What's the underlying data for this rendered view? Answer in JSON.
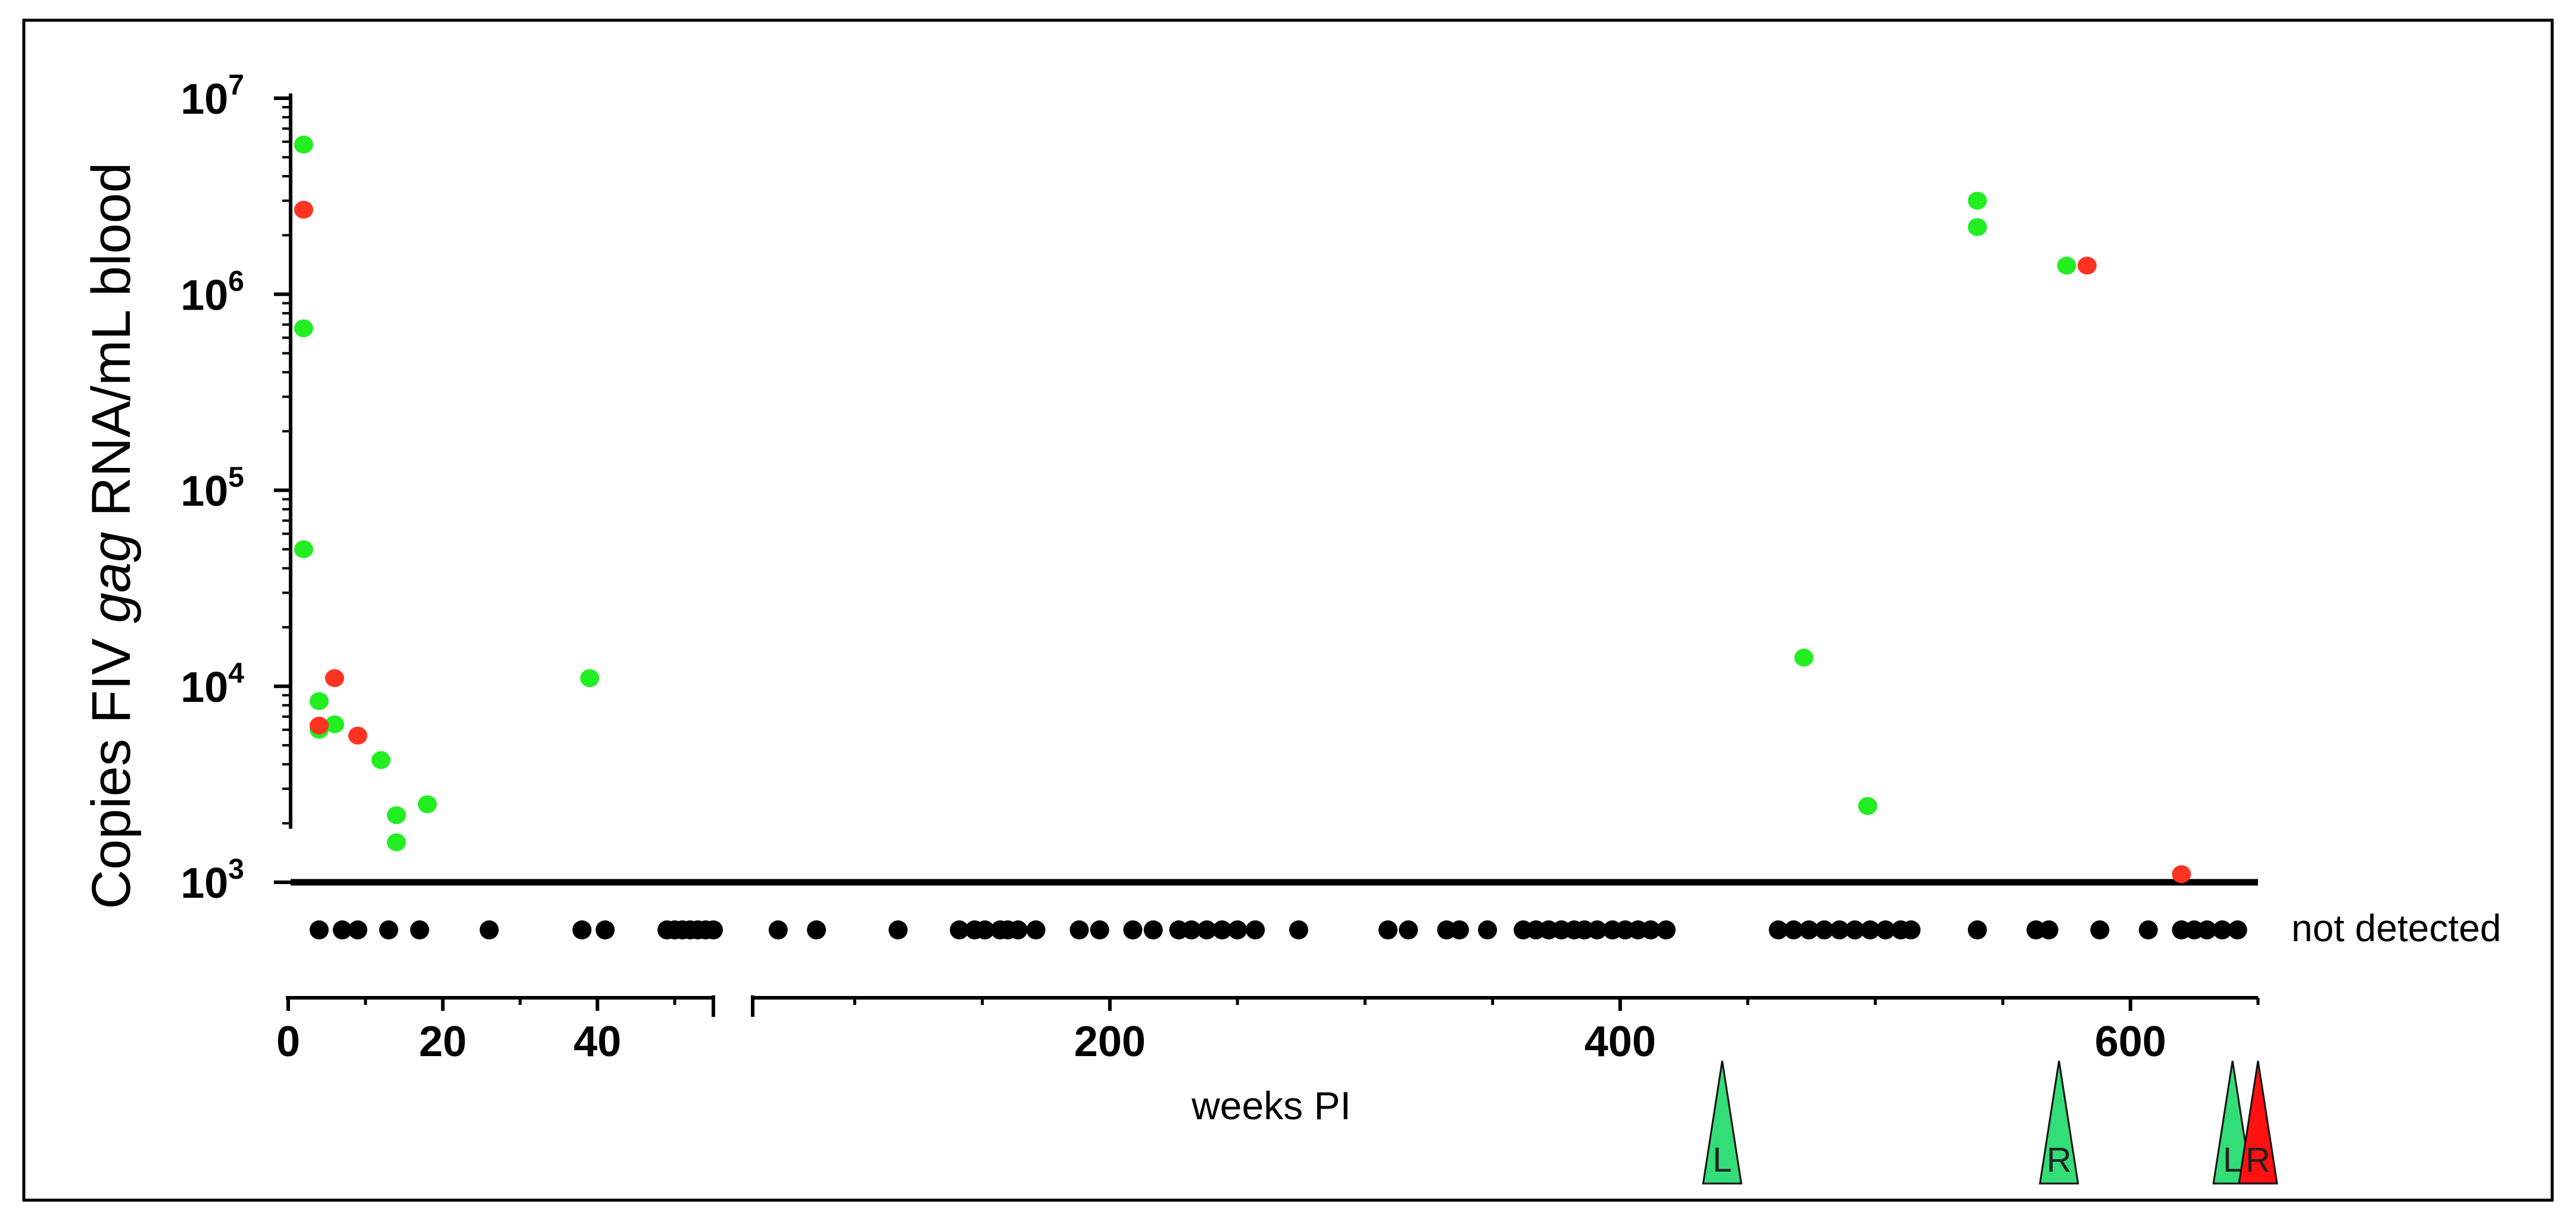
{
  "chart_data": {
    "type": "scatter",
    "title": "",
    "ylabel_parts": [
      "Copies FIV ",
      "gag",
      " RNA/mL blood"
    ],
    "xlabel": "weeks PI",
    "not_detected_label": "not detected",
    "y_scale": "log",
    "ylim": [
      1000,
      10000000
    ],
    "y_tick_base": "10",
    "y_tick_exponents": [
      "3",
      "4",
      "5",
      "6",
      "7"
    ],
    "x_axis_segments": [
      {
        "xlim": [
          0,
          55
        ],
        "ticks": [
          "0",
          "20",
          "40"
        ]
      },
      {
        "xlim": [
          60,
          650
        ],
        "ticks": [
          "200",
          "400",
          "600"
        ]
      }
    ],
    "colors": {
      "green": "#22ee22",
      "red": "#ff3322",
      "not_detected": "#000000",
      "marker_green": "#33dd77",
      "marker_red": "#ff1111"
    },
    "series": [
      {
        "color_key": "green",
        "points": [
          {
            "x": 2,
            "y": 5800000
          },
          {
            "x": 2,
            "y": 670000
          },
          {
            "x": 2,
            "y": 50000
          },
          {
            "x": 4,
            "y": 8400
          },
          {
            "x": 4,
            "y": 6000
          },
          {
            "x": 6,
            "y": 6400
          },
          {
            "x": 12,
            "y": 4200
          },
          {
            "x": 14,
            "y": 2200
          },
          {
            "x": 14,
            "y": 1600
          },
          {
            "x": 18,
            "y": 2500
          },
          {
            "x": 39,
            "y": 11000
          },
          {
            "x": 472,
            "y": 14000
          },
          {
            "x": 497,
            "y": 2450
          },
          {
            "x": 540,
            "y": 3000000
          },
          {
            "x": 540,
            "y": 2200000
          },
          {
            "x": 575,
            "y": 1400000
          }
        ]
      },
      {
        "color_key": "red",
        "points": [
          {
            "x": 2,
            "y": 2700000
          },
          {
            "x": 4,
            "y": 6300
          },
          {
            "x": 6,
            "y": 11000
          },
          {
            "x": 9,
            "y": 5600
          },
          {
            "x": 583,
            "y": 1400000
          },
          {
            "x": 620,
            "y": 1100
          }
        ]
      },
      {
        "color_key": "not_detected",
        "points_x": [
          4,
          7,
          9,
          13,
          17,
          26,
          38,
          41,
          49,
          50,
          51,
          52,
          53,
          54,
          55,
          70,
          85,
          117,
          141,
          147,
          151,
          157,
          160,
          164,
          171,
          188,
          196,
          209,
          217,
          227,
          232,
          238,
          244,
          250,
          257,
          274,
          309,
          317,
          332,
          337,
          348,
          362,
          367,
          372,
          377,
          382,
          386,
          391,
          397,
          402,
          407,
          412,
          418,
          462,
          468,
          474,
          480,
          486,
          492,
          498,
          504,
          510,
          514,
          540,
          563,
          568,
          588,
          607,
          620,
          625,
          630,
          636,
          642
        ]
      }
    ],
    "treatment_markers": [
      {
        "x": 440,
        "letter": "L",
        "color_key": "marker_green"
      },
      {
        "x": 572,
        "letter": "R",
        "color_key": "marker_green"
      },
      {
        "x": 640,
        "letter": "L",
        "color_key": "marker_green"
      },
      {
        "x": 650,
        "letter": "R",
        "color_key": "marker_red"
      }
    ]
  }
}
